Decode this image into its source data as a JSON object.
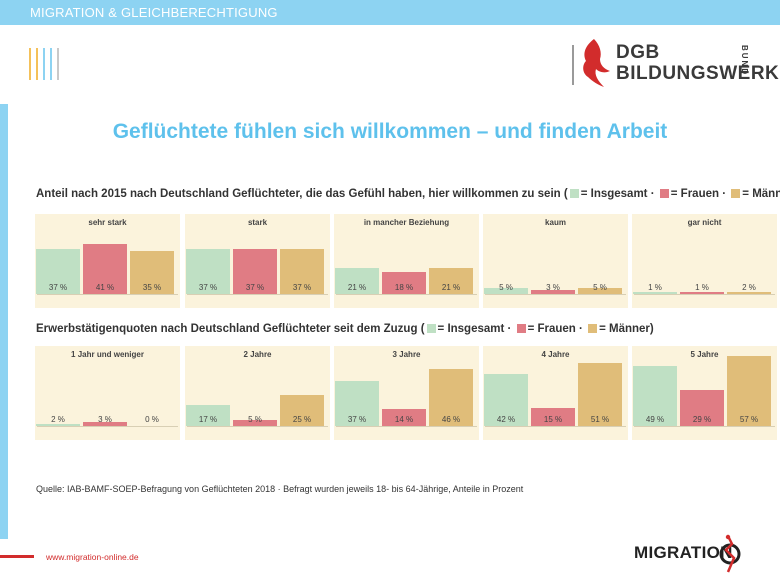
{
  "header": {
    "topbar_text": "MIGRATION & GLEICHBERECHTIGUNG"
  },
  "logos": {
    "dgb_line1": "DGB",
    "dgb_line2": "BILDUNGSWERK",
    "dgb_bund": "BUND",
    "migration": "MIGRATION"
  },
  "title": "Geflüchtete fühlen sich willkommen – und finden Arbeit",
  "colors": {
    "insgesamt": "#bfe0c4",
    "frauen": "#e07c84",
    "maenner": "#e0bd79",
    "panel_bg": "#fbf3dc",
    "accent_blue": "#5ec1ec",
    "accent_red": "#d22c2c"
  },
  "legend": {
    "insgesamt": "= Insgesamt",
    "frauen": "= Frauen",
    "maenner": "= Männer",
    "sep": "·"
  },
  "chart_data": [
    {
      "type": "bar",
      "title": "Anteil nach 2015 nach Deutschland Geflüchteter, die das Gefühl haben, hier willkommen zu sein",
      "unit": "%",
      "ylim": [
        0,
        70
      ],
      "series_names": [
        "Insgesamt",
        "Frauen",
        "Männer"
      ],
      "panels": [
        {
          "label": "sehr stark",
          "values": [
            37,
            41,
            35
          ],
          "labels": [
            "37 %",
            "41 %",
            "35 %"
          ]
        },
        {
          "label": "stark",
          "values": [
            37,
            37,
            37
          ],
          "labels": [
            "37 %",
            "37 %",
            "37 %"
          ]
        },
        {
          "label": "in mancher Beziehung",
          "values": [
            21,
            18,
            21
          ],
          "labels": [
            "21 %",
            "18 %",
            "21 %"
          ]
        },
        {
          "label": "kaum",
          "values": [
            5,
            3,
            5
          ],
          "labels": [
            "5 %",
            "3 %",
            "5 %"
          ]
        },
        {
          "label": "gar nicht",
          "values": [
            1,
            1,
            2
          ],
          "labels": [
            "1 %",
            "1 %",
            "2 %"
          ]
        }
      ]
    },
    {
      "type": "bar",
      "title": "Erwerbstätigenquoten nach Deutschland Geflüchteter seit dem Zuzug",
      "unit": "%",
      "ylim": [
        0,
        70
      ],
      "series_names": [
        "Insgesamt",
        "Frauen",
        "Männer"
      ],
      "panels": [
        {
          "label": "1 Jahr und weniger",
          "values": [
            2,
            3,
            0
          ],
          "labels": [
            "2 %",
            "3 %",
            "0 %"
          ]
        },
        {
          "label": "2 Jahre",
          "values": [
            17,
            5,
            25
          ],
          "labels": [
            "17 %",
            "5 %",
            "25 %"
          ]
        },
        {
          "label": "3 Jahre",
          "values": [
            37,
            14,
            46
          ],
          "labels": [
            "37 %",
            "14 %",
            "46 %"
          ]
        },
        {
          "label": "4 Jahre",
          "values": [
            42,
            15,
            51
          ],
          "labels": [
            "42 %",
            "15 %",
            "51 %"
          ]
        },
        {
          "label": "5 Jahre",
          "values": [
            49,
            29,
            57
          ],
          "labels": [
            "49 %",
            "29 %",
            "57 %"
          ]
        }
      ]
    }
  ],
  "footer": {
    "source": "Quelle: IAB-BAMF-SOEP-Befragung  von Geflüchteten 2018 · Befragt wurden jeweils 18- bis 64-Jährige, Anteile in Prozent",
    "website": "www.migration-online.de"
  }
}
